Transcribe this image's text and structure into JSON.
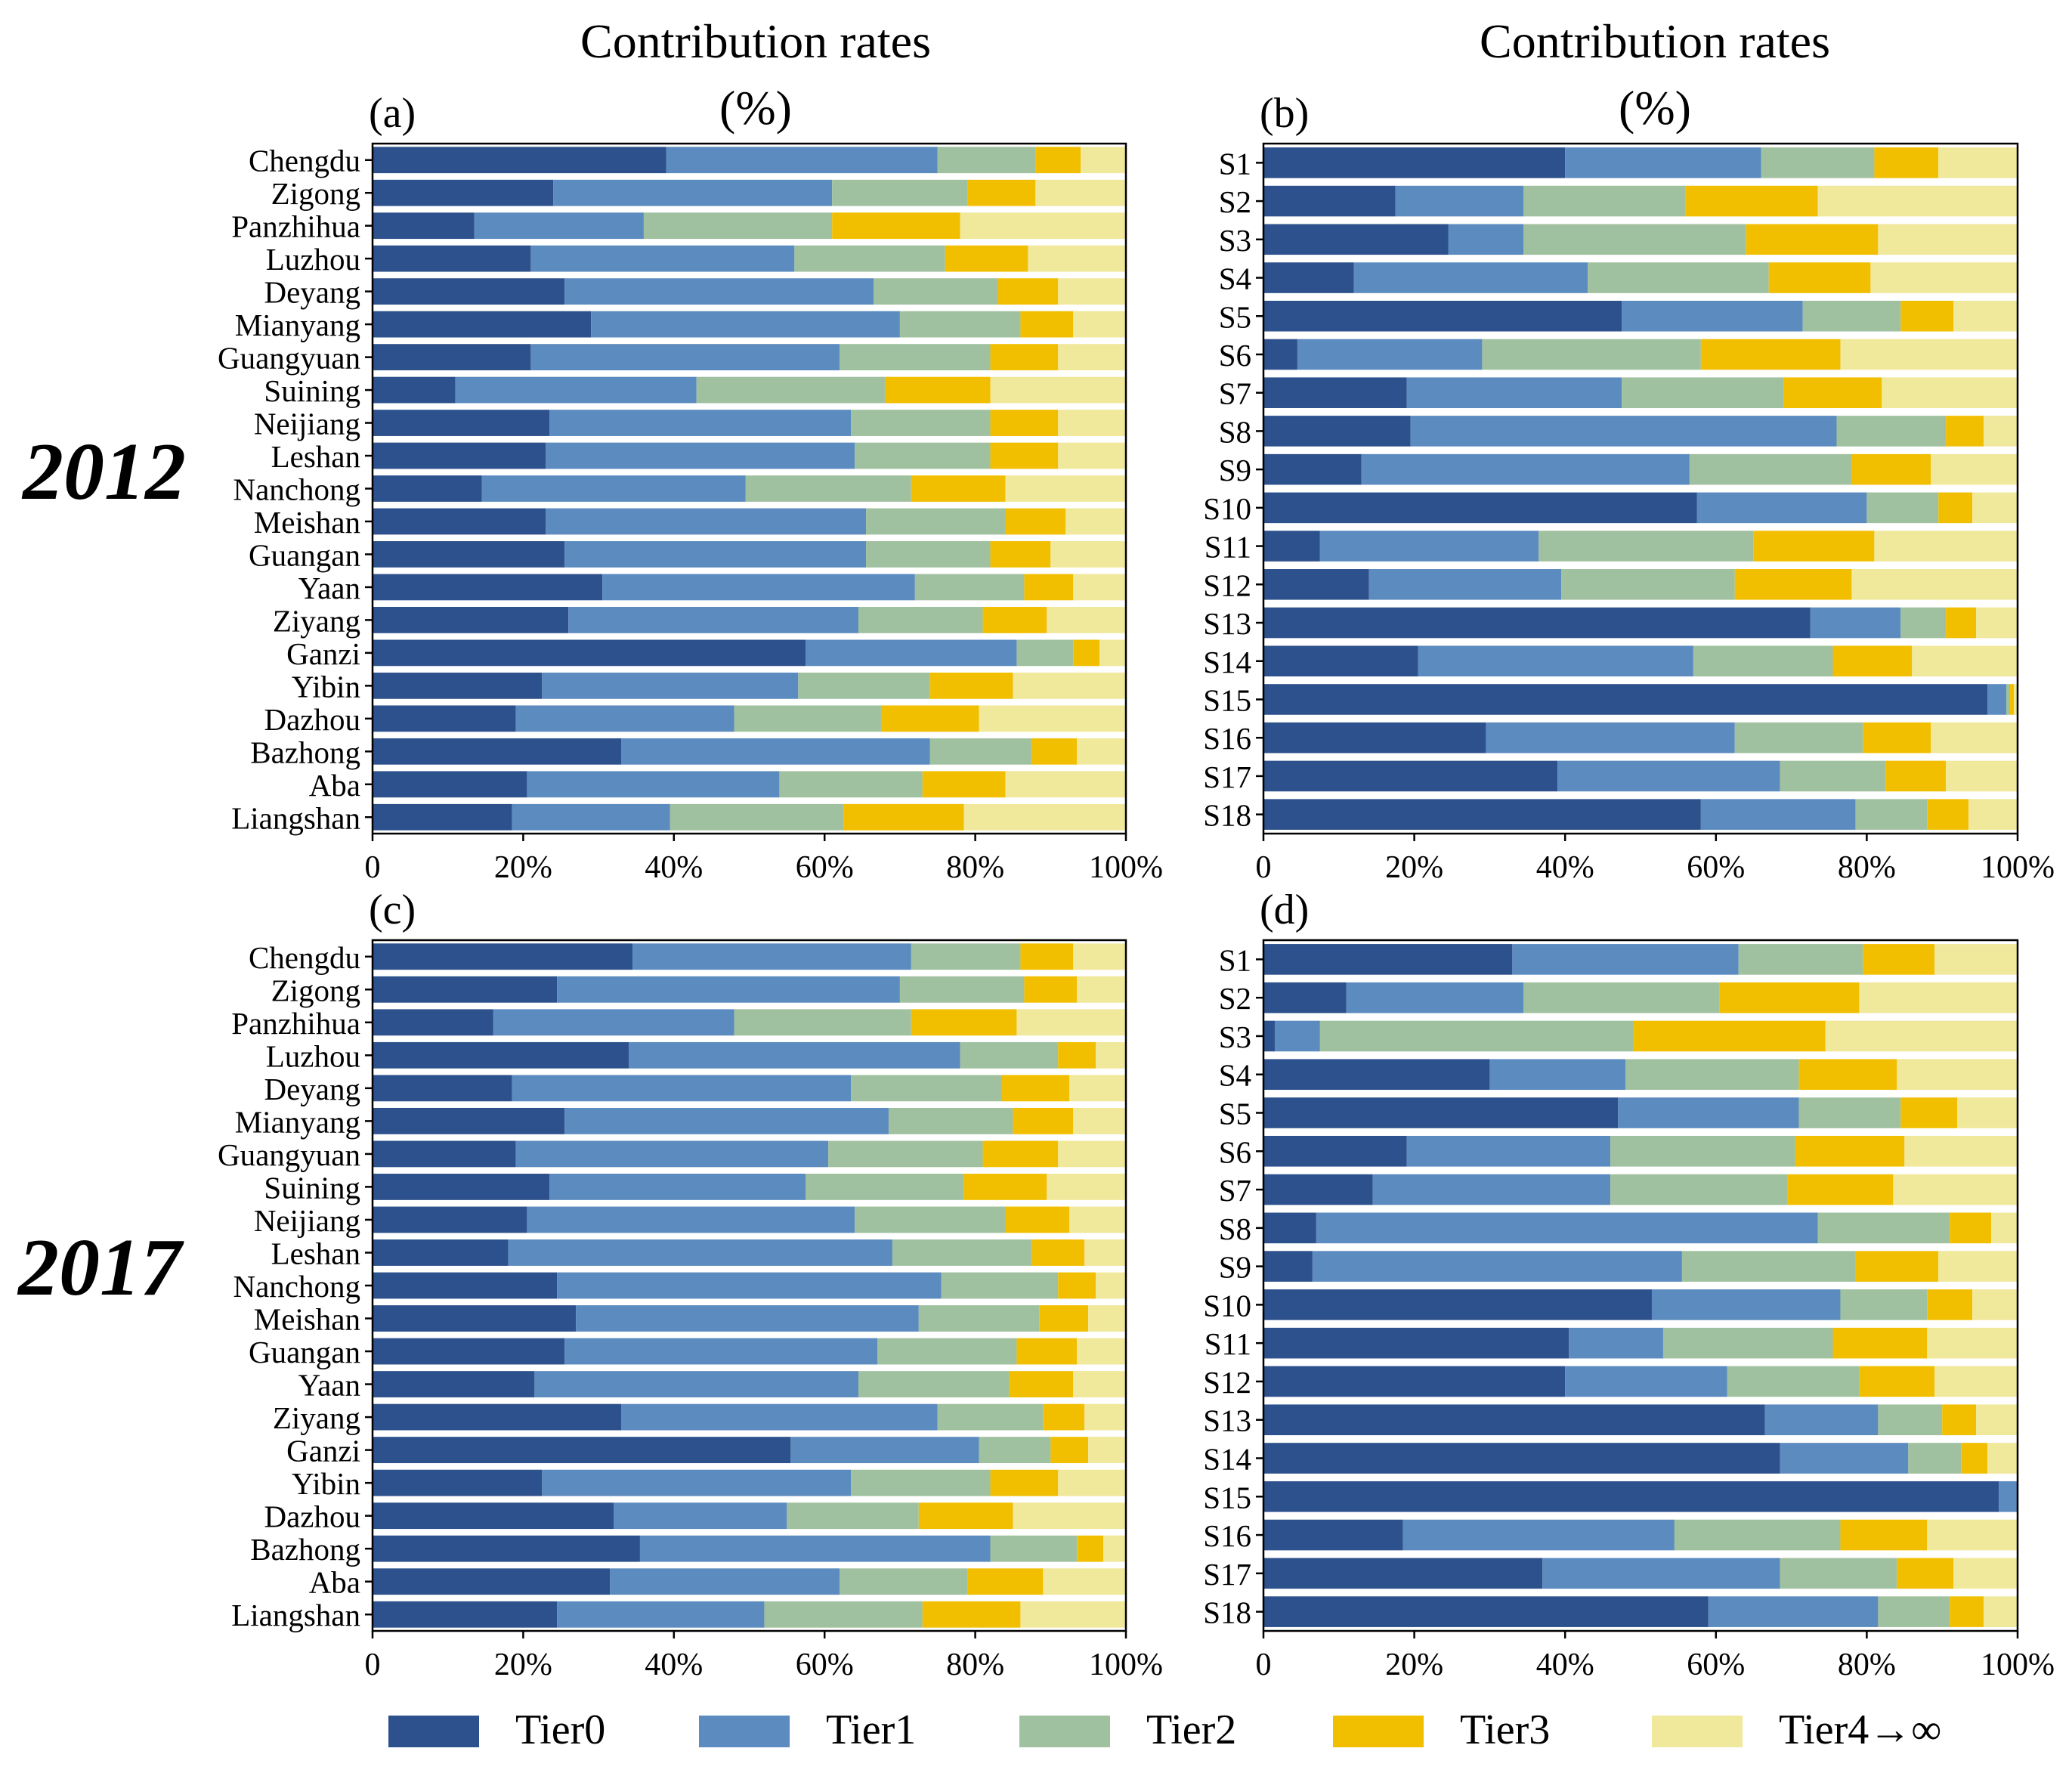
{
  "series_names": [
    "Tier0",
    "Tier1",
    "Tier2",
    "Tier3",
    "Tier4→∞"
  ],
  "colors": [
    "#2d518c",
    "#5b8bbf",
    "#a0c19f",
    "#f2bf00",
    "#f0e89a"
  ],
  "labels": {
    "title_a": "Contribution rates",
    "unit_a": "(%)",
    "title_b": "Contribution rates",
    "unit_b": "(%)",
    "year_top": "2012",
    "year_bottom": "2017"
  },
  "chart_data": [
    {
      "id": "a",
      "panel_label": "(a)",
      "type": "bar",
      "orientation": "horizontal",
      "stacked": true,
      "xlim": [
        0,
        100
      ],
      "xticks": [
        "0",
        "20%",
        "40%",
        "60%",
        "80%",
        "100%"
      ],
      "categories": [
        "Chengdu",
        "Zigong",
        "Panzhihua",
        "Luzhou",
        "Deyang",
        "Mianyang",
        "Guangyuan",
        "Suining",
        "Neijiang",
        "Leshan",
        "Nanchong",
        "Meishan",
        "Guangan",
        "Yaan",
        "Ziyang",
        "Ganzi",
        "Yibin",
        "Dazhou",
        "Bazhong",
        "Aba",
        "Liangshan"
      ],
      "values": [
        [
          39,
          36,
          13,
          6,
          6
        ],
        [
          24,
          37,
          18,
          9,
          12
        ],
        [
          13.5,
          22.5,
          25,
          17,
          22
        ],
        [
          21,
          35,
          20,
          11,
          13
        ],
        [
          25.5,
          41,
          16.5,
          8,
          9
        ],
        [
          29,
          41,
          16,
          7,
          7
        ],
        [
          21,
          41,
          20,
          9,
          9
        ],
        [
          11,
          32,
          25,
          14,
          18
        ],
        [
          23.5,
          40,
          18.5,
          9,
          9
        ],
        [
          23,
          41,
          18,
          9,
          9
        ],
        [
          14.5,
          35,
          22,
          12.5,
          16
        ],
        [
          23,
          42.5,
          18.5,
          8,
          8
        ],
        [
          25.5,
          40,
          16.5,
          8,
          10
        ],
        [
          30.5,
          41.5,
          14.5,
          6.5,
          7
        ],
        [
          26,
          38.5,
          16.5,
          8.5,
          10.5
        ],
        [
          57.5,
          28,
          7.5,
          3.5,
          3.5
        ],
        [
          22.5,
          34,
          17.5,
          11,
          15
        ],
        [
          19,
          29,
          19.5,
          13,
          19.5
        ],
        [
          33,
          41,
          13.5,
          6,
          6.5
        ],
        [
          20.5,
          33.5,
          19,
          11,
          16
        ],
        [
          18.5,
          21,
          23,
          16,
          21.5
        ]
      ]
    },
    {
      "id": "b",
      "panel_label": "(b)",
      "type": "bar",
      "orientation": "horizontal",
      "stacked": true,
      "xlim": [
        0,
        100
      ],
      "xticks": [
        "0",
        "20%",
        "40%",
        "60%",
        "80%",
        "100%"
      ],
      "categories": [
        "S1",
        "S2",
        "S3",
        "S4",
        "S5",
        "S6",
        "S7",
        "S8",
        "S9",
        "S10",
        "S11",
        "S12",
        "S13",
        "S14",
        "S15",
        "S16",
        "S17",
        "S18"
      ],
      "values": [
        [
          40,
          26,
          15,
          8.5,
          10.5
        ],
        [
          17.5,
          17,
          21.5,
          17.5,
          26.5
        ],
        [
          24.5,
          10,
          29.5,
          17.5,
          18.5
        ],
        [
          12,
          31,
          24,
          13.5,
          19.5
        ],
        [
          47.5,
          24,
          13,
          7,
          8.5
        ],
        [
          4.5,
          24.5,
          29,
          18.5,
          23.5
        ],
        [
          19,
          28.5,
          21.5,
          13,
          18
        ],
        [
          19.5,
          56.5,
          14.5,
          5,
          4.5
        ],
        [
          13,
          43.5,
          21.5,
          10.5,
          11.5
        ],
        [
          57.5,
          22.5,
          9.5,
          4.5,
          6
        ],
        [
          7.5,
          29,
          28.5,
          16,
          19
        ],
        [
          14,
          25.5,
          23,
          15.5,
          22
        ],
        [
          72.5,
          12,
          6,
          4,
          5.5
        ],
        [
          20.5,
          36.5,
          18.5,
          10.5,
          14
        ],
        [
          96,
          2.5,
          0.5,
          0.5,
          0.5
        ],
        [
          29.5,
          33,
          17,
          9,
          11.5
        ],
        [
          39,
          29.5,
          14,
          8,
          9.5
        ],
        [
          58,
          20.5,
          9.5,
          5.5,
          6.5
        ]
      ]
    },
    {
      "id": "c",
      "panel_label": "(c)",
      "type": "bar",
      "orientation": "horizontal",
      "stacked": true,
      "xlim": [
        0,
        100
      ],
      "xticks": [
        "0",
        "20%",
        "40%",
        "60%",
        "80%",
        "100%"
      ],
      "categories": [
        "Chengdu",
        "Zigong",
        "Panzhihua",
        "Luzhou",
        "Deyang",
        "Mianyang",
        "Guangyuan",
        "Suining",
        "Neijiang",
        "Leshan",
        "Nanchong",
        "Meishan",
        "Guangan",
        "Yaan",
        "Ziyang",
        "Ganzi",
        "Yibin",
        "Dazhou",
        "Bazhong",
        "Aba",
        "Liangshan"
      ],
      "values": [
        [
          34.5,
          37,
          14.5,
          7,
          7
        ],
        [
          24.5,
          45.5,
          16.5,
          7,
          6.5
        ],
        [
          16,
          32,
          23.5,
          14,
          14.5
        ],
        [
          34,
          44,
          13,
          5,
          4
        ],
        [
          18.5,
          45,
          20,
          9,
          7.5
        ],
        [
          25.5,
          43,
          16.5,
          8,
          7
        ],
        [
          19,
          41.5,
          20.5,
          10,
          9
        ],
        [
          23.5,
          34,
          21,
          11,
          10.5
        ],
        [
          20.5,
          43.5,
          20,
          8.5,
          7.5
        ],
        [
          18,
          51,
          18.5,
          7,
          5.5
        ],
        [
          24.5,
          51,
          15.5,
          5,
          4
        ],
        [
          27,
          45.5,
          16,
          6.5,
          5
        ],
        [
          25.5,
          41.5,
          18.5,
          8,
          6.5
        ],
        [
          21.5,
          43,
          20,
          8.5,
          7
        ],
        [
          33,
          42,
          14,
          5.5,
          5.5
        ],
        [
          55.5,
          25,
          9.5,
          5,
          5
        ],
        [
          22.5,
          41,
          18.5,
          9,
          9
        ],
        [
          32,
          23,
          17.5,
          12.5,
          15
        ],
        [
          35.5,
          46.5,
          11.5,
          3.5,
          3
        ],
        [
          31.5,
          30.5,
          17,
          10,
          11
        ],
        [
          24.5,
          27.5,
          21,
          13,
          14
        ]
      ]
    },
    {
      "id": "d",
      "panel_label": "(d)",
      "type": "bar",
      "orientation": "horizontal",
      "stacked": true,
      "xlim": [
        0,
        100
      ],
      "xticks": [
        "0",
        "20%",
        "40%",
        "60%",
        "80%",
        "100%"
      ],
      "categories": [
        "S1",
        "S2",
        "S3",
        "S4",
        "S5",
        "S6",
        "S7",
        "S8",
        "S9",
        "S10",
        "S11",
        "S12",
        "S13",
        "S14",
        "S15",
        "S16",
        "S17",
        "S18"
      ],
      "values": [
        [
          33,
          30,
          16.5,
          9.5,
          11
        ],
        [
          11,
          23.5,
          26,
          18.5,
          21
        ],
        [
          1.5,
          6,
          41.5,
          25.5,
          25.5
        ],
        [
          30,
          18,
          23,
          13,
          16
        ],
        [
          47,
          24,
          13.5,
          7.5,
          8
        ],
        [
          19,
          27,
          24.5,
          14.5,
          15
        ],
        [
          14.5,
          31.5,
          23.5,
          14,
          16.5
        ],
        [
          7,
          66.5,
          17.5,
          5.5,
          3.5
        ],
        [
          6.5,
          49,
          23,
          11,
          10.5
        ],
        [
          51.5,
          25,
          11.5,
          6,
          6
        ],
        [
          40.5,
          12.5,
          22.5,
          12.5,
          12
        ],
        [
          40,
          21.5,
          17.5,
          10,
          11
        ],
        [
          66.5,
          15,
          8.5,
          4.5,
          5.5
        ],
        [
          68.5,
          17,
          7,
          3.5,
          4
        ],
        [
          97.5,
          2.5,
          0,
          0,
          0
        ],
        [
          18.5,
          36,
          22,
          11.5,
          12
        ],
        [
          37,
          31.5,
          15.5,
          7.5,
          8.5
        ],
        [
          59,
          22.5,
          9.5,
          4.5,
          4.5
        ]
      ]
    }
  ]
}
